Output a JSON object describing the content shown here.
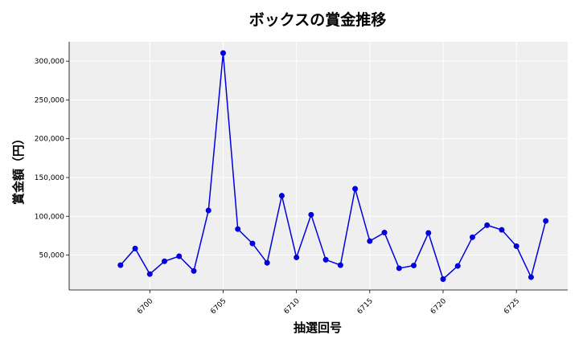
{
  "chart_data": {
    "type": "line",
    "title": "ボックスの賞金推移",
    "xlabel": "抽選回号",
    "ylabel": "賞金額（円）",
    "x": [
      6698,
      6699,
      6700,
      6701,
      6702,
      6703,
      6704,
      6705,
      6706,
      6707,
      6708,
      6709,
      6710,
      6711,
      6712,
      6713,
      6714,
      6715,
      6716,
      6717,
      6718,
      6719,
      6720,
      6721,
      6722,
      6723,
      6724,
      6725,
      6726,
      6727
    ],
    "series": [
      {
        "values": [
          37000,
          58500,
          25500,
          42000,
          48500,
          29500,
          107500,
          310500,
          83500,
          65000,
          40000,
          126500,
          47000,
          102000,
          44000,
          37000,
          135500,
          68000,
          79000,
          33000,
          36500,
          78500,
          19000,
          36000,
          73000,
          88500,
          82500,
          61500,
          21500,
          94000
        ],
        "color": "#0000dd"
      }
    ],
    "xticks": [
      6700,
      6705,
      6710,
      6715,
      6720,
      6725
    ],
    "xtick_labels": [
      "6700",
      "6705",
      "6710",
      "6715",
      "6720",
      "6725"
    ],
    "yticks": [
      50000,
      100000,
      150000,
      200000,
      250000,
      300000
    ],
    "ytick_labels": [
      "50,000",
      "100,000",
      "150,000",
      "200,000",
      "250,000",
      "300,000"
    ],
    "xlim": [
      6694.5,
      6728.5
    ],
    "ylim": [
      5000,
      325000
    ],
    "grid": true,
    "plot_background": "#efefef",
    "grid_color": "#ffffff"
  }
}
